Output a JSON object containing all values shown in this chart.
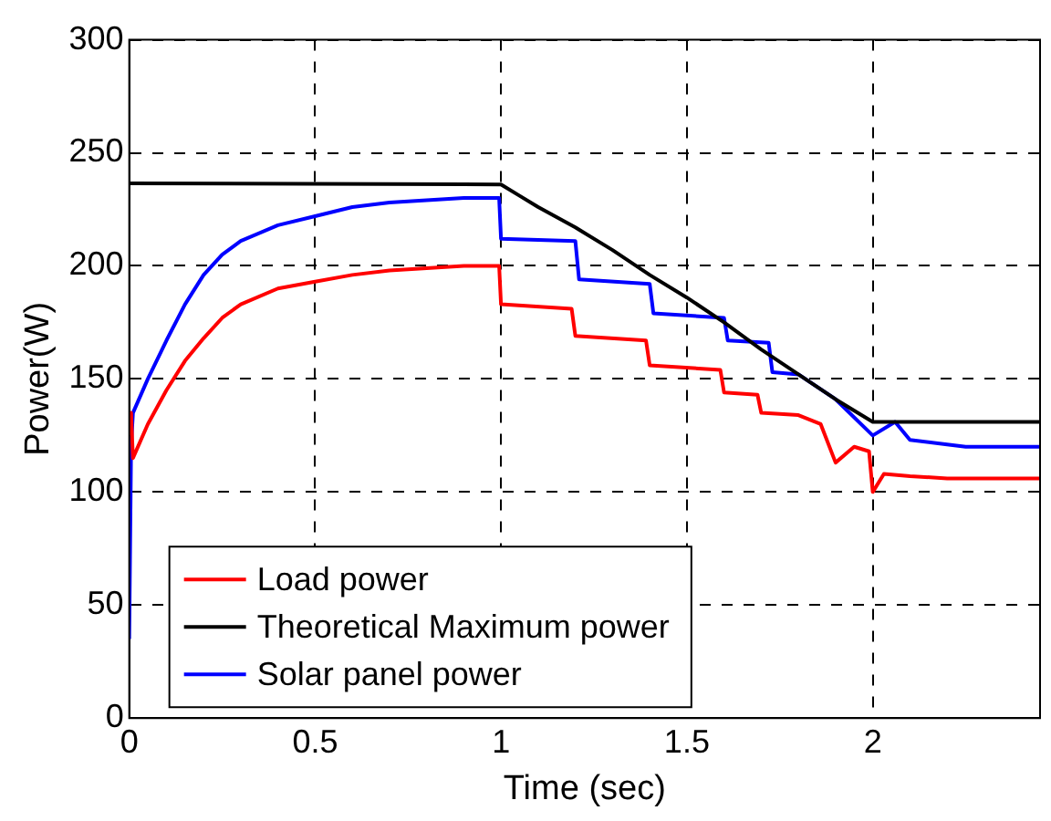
{
  "chart_data": {
    "type": "line",
    "xlabel": "Time (sec)",
    "ylabel": "Power(W)",
    "xlim": [
      0,
      2.45
    ],
    "xticks": [
      0,
      0.5,
      1,
      1.5,
      2
    ],
    "ylim": [
      0,
      300
    ],
    "yticks": [
      0,
      50,
      100,
      150,
      200,
      250,
      300
    ],
    "grid": true,
    "legend": "bottom left",
    "marker": "none",
    "line_style": "solid",
    "series": [
      {
        "name": "Load power",
        "color": "#ff0000",
        "x": [
          0,
          0.005,
          0.01,
          0.05,
          0.1,
          0.15,
          0.2,
          0.25,
          0.3,
          0.4,
          0.5,
          0.6,
          0.7,
          0.8,
          0.9,
          0.995,
          1.0,
          1.19,
          1.2,
          1.39,
          1.4,
          1.59,
          1.6,
          1.69,
          1.7,
          1.8,
          1.86,
          1.9,
          1.95,
          1.99,
          2.0,
          2.03,
          2.1,
          2.2,
          2.45
        ],
        "values": [
          125,
          135,
          115,
          130,
          145,
          158,
          168,
          177,
          183,
          190,
          193,
          196,
          198,
          199,
          200,
          200,
          183,
          181,
          169,
          167,
          156,
          154,
          144,
          143,
          135,
          134,
          130,
          113,
          120,
          118,
          100,
          108,
          107,
          106,
          106
        ]
      },
      {
        "name": "Theoretical Maximum power",
        "color": "#000000",
        "x": [
          0,
          1.0,
          1.05,
          1.1,
          1.2,
          1.3,
          1.4,
          1.5,
          1.6,
          1.7,
          1.8,
          1.9,
          2.0,
          2.45
        ],
        "values": [
          236.5,
          236,
          231,
          226,
          217,
          207,
          196,
          186,
          175,
          163,
          152,
          141,
          131,
          131
        ]
      },
      {
        "name": "Solar panel power",
        "color": "#0000ff",
        "x": [
          0,
          0.005,
          0.01,
          0.05,
          0.1,
          0.15,
          0.2,
          0.25,
          0.3,
          0.4,
          0.5,
          0.6,
          0.7,
          0.8,
          0.9,
          0.995,
          1.0,
          1.2,
          1.21,
          1.4,
          1.41,
          1.6,
          1.61,
          1.72,
          1.73,
          1.8,
          1.9,
          2.0,
          2.06,
          2.1,
          2.2,
          2.25,
          2.45
        ],
        "values": [
          35,
          120,
          135,
          150,
          167,
          183,
          196,
          205,
          211,
          218,
          222,
          226,
          228,
          229,
          230,
          230,
          212,
          211,
          194,
          192,
          179,
          177,
          167,
          166,
          153,
          152,
          141,
          125,
          131,
          123,
          121,
          120,
          120
        ]
      }
    ]
  }
}
